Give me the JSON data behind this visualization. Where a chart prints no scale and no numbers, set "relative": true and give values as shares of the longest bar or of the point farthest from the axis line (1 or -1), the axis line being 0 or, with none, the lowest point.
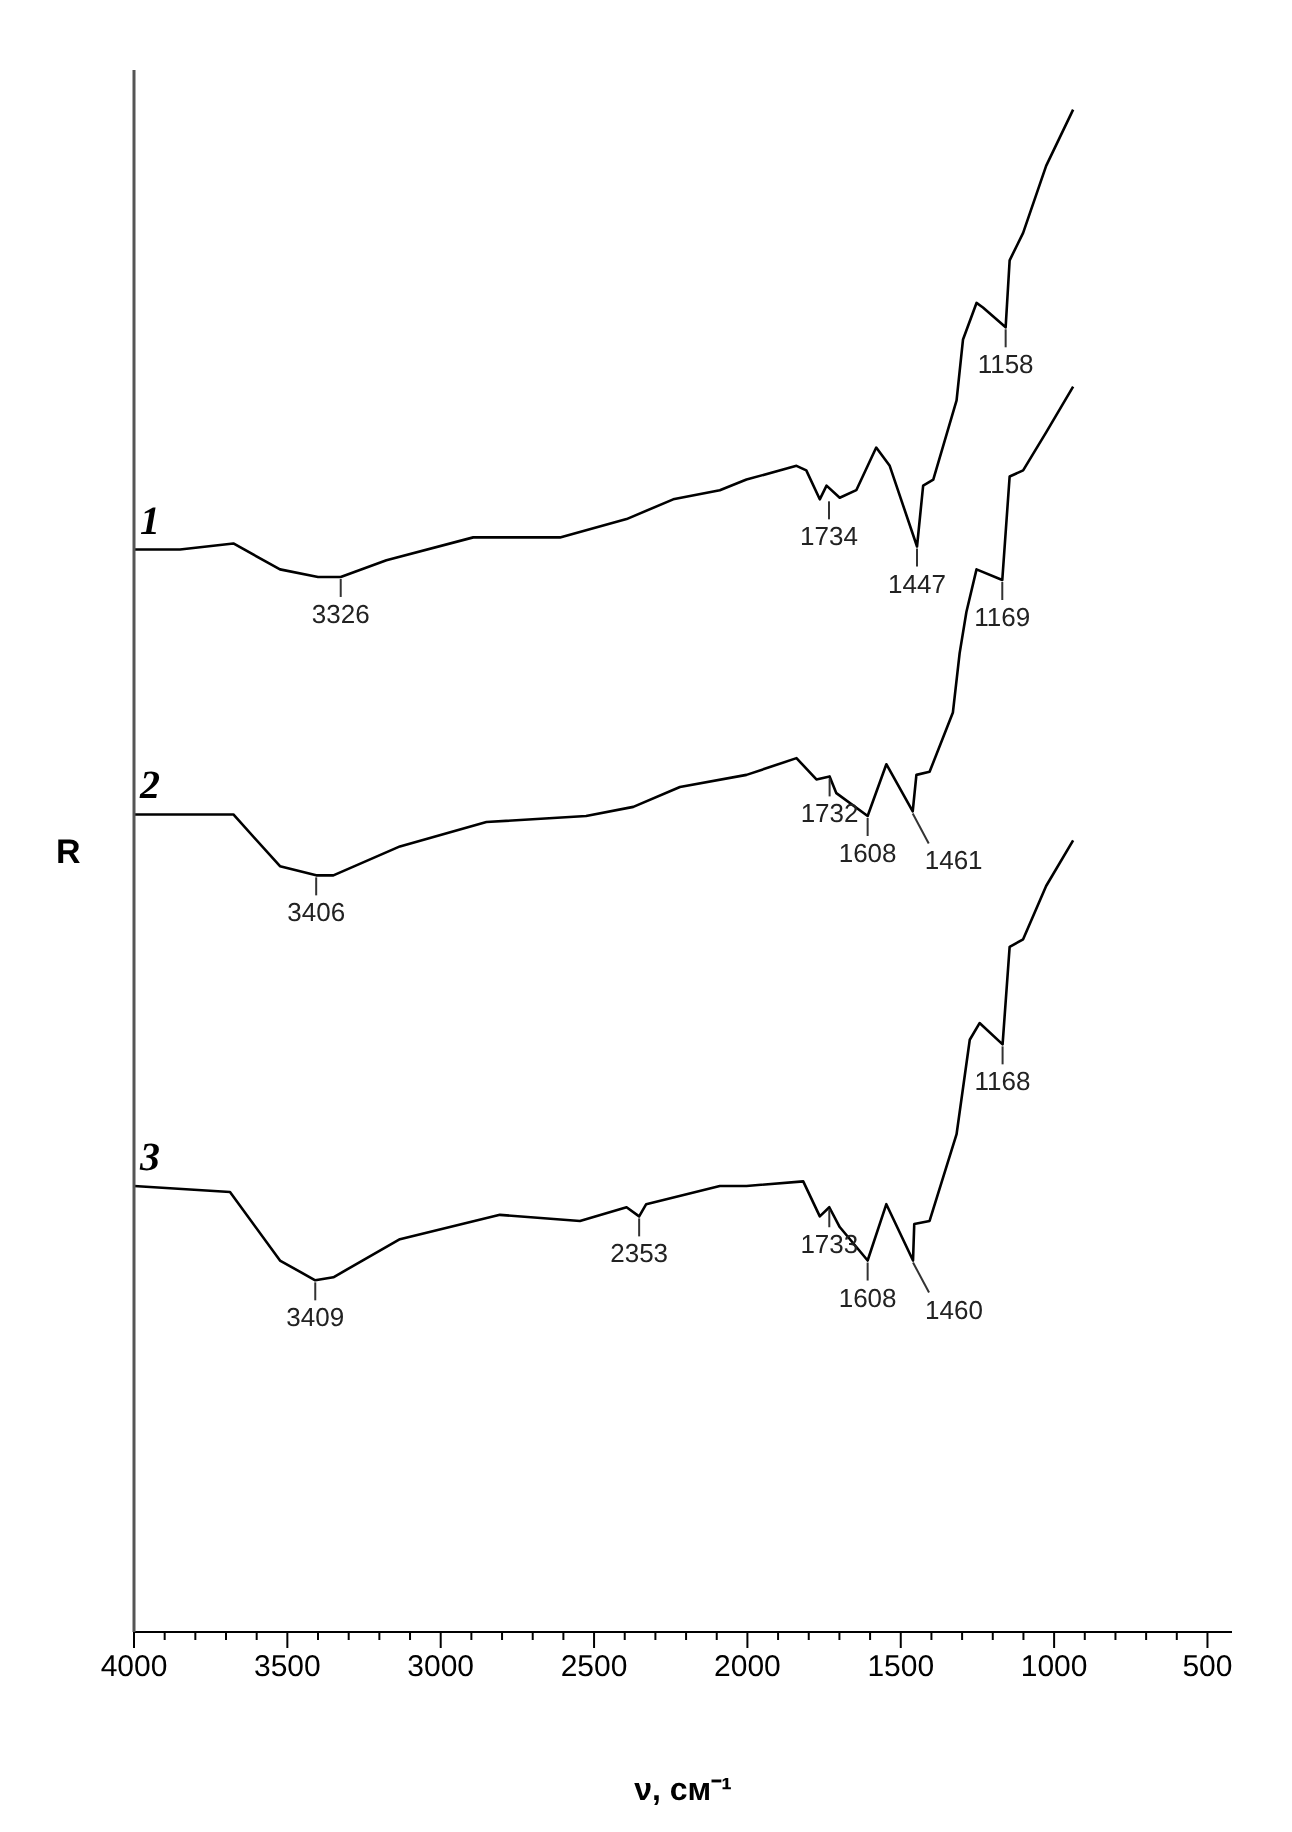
{
  "chart_data": {
    "type": "line",
    "relative": true,
    "xlabel": "ν, см⁻¹",
    "ylabel": "R",
    "legend": false,
    "marker": "none",
    "line_style": "solid",
    "grid": false,
    "xlim": [
      4000,
      420
    ],
    "xticks": [
      4000,
      {
        "value": 3900,
        "label": null
      },
      {
        "value": 3800,
        "label": null
      },
      {
        "value": 3700,
        "label": null
      },
      {
        "value": 3600,
        "label": null
      },
      3500,
      {
        "value": 3400,
        "label": null
      },
      {
        "value": 3300,
        "label": null
      },
      {
        "value": 3200,
        "label": null
      },
      {
        "value": 3100,
        "label": null
      },
      3000,
      {
        "value": 2900,
        "label": null
      },
      {
        "value": 2800,
        "label": null
      },
      {
        "value": 2700,
        "label": null
      },
      {
        "value": 2600,
        "label": null
      },
      2500,
      {
        "value": 2400,
        "label": null
      },
      {
        "value": 2300,
        "label": null
      },
      {
        "value": 2200,
        "label": null
      },
      {
        "value": 2100,
        "label": null
      },
      2000,
      {
        "value": 1900,
        "label": null
      },
      {
        "value": 1800,
        "label": null
      },
      {
        "value": 1700,
        "label": null
      },
      {
        "value": 1600,
        "label": null
      },
      1500,
      {
        "value": 1400,
        "label": null
      },
      {
        "value": 1300,
        "label": null
      },
      {
        "value": 1200,
        "label": null
      },
      {
        "value": 1100,
        "label": null
      },
      1000,
      {
        "value": 900,
        "label": null
      },
      {
        "value": 800,
        "label": null
      },
      {
        "value": 700,
        "label": null
      },
      {
        "value": 600,
        "label": null
      },
      500
    ],
    "series": [
      {
        "name": "1",
        "color": "#000000",
        "x": [
          4000,
          3850,
          3676,
          3524,
          3400,
          3326,
          3177,
          2894,
          2611,
          2394,
          2242,
          2090,
          2003,
          1840,
          1808,
          1764,
          1742,
          1699,
          1645,
          1580,
          1536,
          1447,
          1427,
          1394,
          1318,
          1297,
          1253,
          1232,
          1158,
          1145,
          1101,
          1026,
          938
        ],
        "values": [
          0.711,
          0.711,
          0.715,
          0.698,
          0.693,
          0.693,
          0.704,
          0.719,
          0.719,
          0.731,
          0.744,
          0.75,
          0.757,
          0.766,
          0.763,
          0.744,
          0.753,
          0.745,
          0.75,
          0.778,
          0.766,
          0.713,
          0.753,
          0.757,
          0.809,
          0.849,
          0.873,
          0.87,
          0.857,
          0.901,
          0.919,
          0.963,
          1.0
        ]
      },
      {
        "name": "2",
        "color": "#000000",
        "x": [
          4000,
          3676,
          3524,
          3406,
          3350,
          3133,
          2851,
          2526,
          2372,
          2220,
          2003,
          1840,
          1775,
          1732,
          1710,
          1608,
          1547,
          1461,
          1449,
          1406,
          1330,
          1308,
          1286,
          1253,
          1169,
          1145,
          1101,
          1026,
          938
        ],
        "values": [
          0.537,
          0.537,
          0.503,
          0.497,
          0.497,
          0.516,
          0.532,
          0.536,
          0.542,
          0.555,
          0.563,
          0.574,
          0.56,
          0.562,
          0.551,
          0.536,
          0.57,
          0.539,
          0.563,
          0.565,
          0.604,
          0.643,
          0.67,
          0.698,
          0.691,
          0.759,
          0.763,
          0.788,
          0.818
        ]
      },
      {
        "name": "3",
        "color": "#000000",
        "x": [
          4000,
          3687,
          3524,
          3409,
          3350,
          3133,
          2807,
          2546,
          2394,
          2353,
          2330,
          2090,
          2003,
          1818,
          1764,
          1733,
          1699,
          1608,
          1547,
          1460,
          1456,
          1406,
          1318,
          1275,
          1243,
          1168,
          1145,
          1101,
          1026,
          938
        ],
        "values": [
          0.293,
          0.289,
          0.244,
          0.231,
          0.233,
          0.258,
          0.274,
          0.27,
          0.279,
          0.273,
          0.281,
          0.293,
          0.293,
          0.296,
          0.273,
          0.279,
          0.266,
          0.244,
          0.281,
          0.244,
          0.268,
          0.27,
          0.327,
          0.389,
          0.4,
          0.386,
          0.45,
          0.455,
          0.49,
          0.52
        ]
      }
    ],
    "annotations": [
      {
        "text": "3326",
        "x": 3326,
        "y": 0.693
      },
      {
        "text": "1734",
        "x": 1734,
        "y": 0.744
      },
      {
        "text": "1447",
        "x": 1447,
        "y": 0.713
      },
      {
        "text": "1158",
        "x": 1158,
        "y": 0.857
      },
      {
        "text": "3406",
        "x": 3406,
        "y": 0.497
      },
      {
        "text": "1732",
        "x": 1732,
        "y": 0.562
      },
      {
        "text": "1608",
        "x": 1608,
        "y": 0.536
      },
      {
        "text": "1461",
        "x": 1461,
        "y": 0.539
      },
      {
        "text": "1169",
        "x": 1169,
        "y": 0.691
      },
      {
        "text": "3409",
        "x": 3409,
        "y": 0.231
      },
      {
        "text": "2353",
        "x": 2353,
        "y": 0.273
      },
      {
        "text": "1733",
        "x": 1733,
        "y": 0.279
      },
      {
        "text": "1608",
        "x": 1608,
        "y": 0.244
      },
      {
        "text": "1460",
        "x": 1460,
        "y": 0.244
      },
      {
        "text": "1168",
        "x": 1168,
        "y": 0.386
      }
    ]
  }
}
